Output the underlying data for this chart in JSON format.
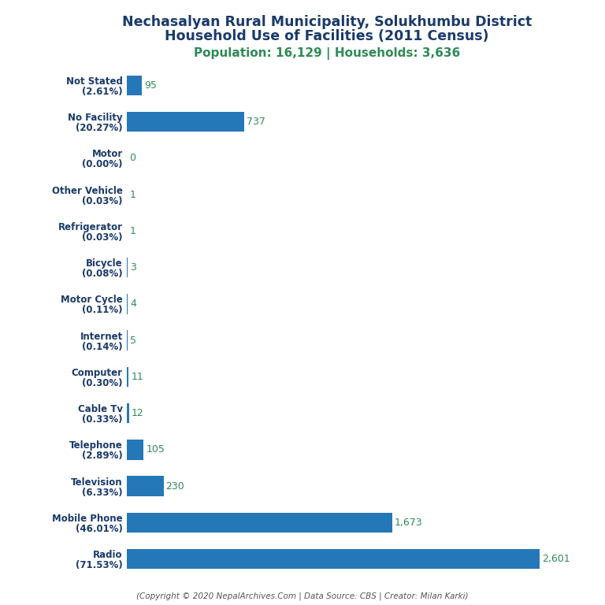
{
  "title_line1": "Nechasalyan Rural Municipality, Solukhumbu District",
  "title_line2": "Household Use of Facilities (2011 Census)",
  "subtitle": "Population: 16,129 | Households: 3,636",
  "footer": "(Copyright © 2020 NepalArchives.Com | Data Source: CBS | Creator: Milan Karki)",
  "categories": [
    "Not Stated\n(2.61%)",
    "No Facility\n(20.27%)",
    "Motor\n(0.00%)",
    "Other Vehicle\n(0.03%)",
    "Refrigerator\n(0.03%)",
    "Bicycle\n(0.08%)",
    "Motor Cycle\n(0.11%)",
    "Internet\n(0.14%)",
    "Computer\n(0.30%)",
    "Cable Tv\n(0.33%)",
    "Telephone\n(2.89%)",
    "Television\n(6.33%)",
    "Mobile Phone\n(46.01%)",
    "Radio\n(71.53%)"
  ],
  "values": [
    95,
    737,
    0,
    1,
    1,
    3,
    4,
    5,
    11,
    12,
    105,
    230,
    1673,
    2601
  ],
  "bar_color": "#2478b8",
  "title_color": "#1a3a6b",
  "subtitle_color": "#2e8b57",
  "value_color": "#2e8b57",
  "footer_color": "#555555",
  "background_color": "#ffffff",
  "xlim": [
    0,
    2900
  ]
}
